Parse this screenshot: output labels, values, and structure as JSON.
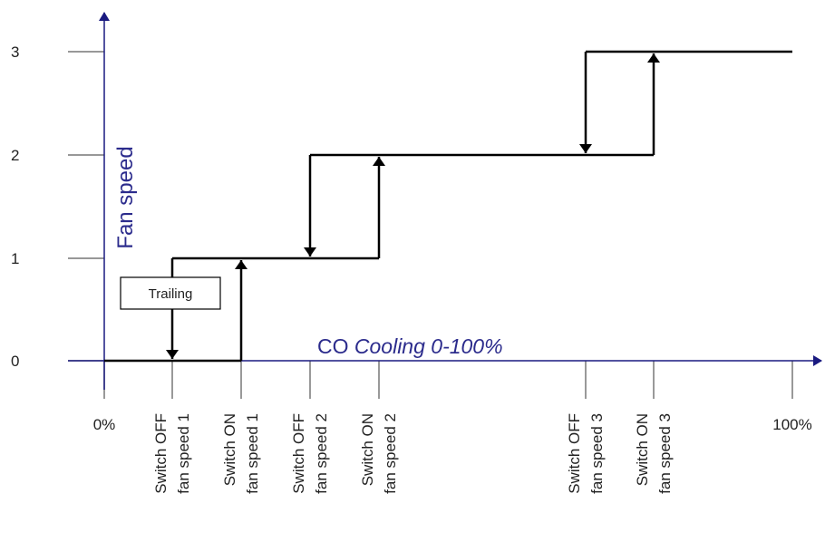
{
  "y_axis": {
    "title": "Fan speed",
    "labels": [
      "0",
      "1",
      "2",
      "3"
    ]
  },
  "x_axis": {
    "title_prefix": "CO",
    "title_italic": "Cooling 0-100%",
    "labels": [
      {
        "lines": [
          "0%"
        ]
      },
      {
        "lines": [
          "Switch OFF",
          "fan speed 1"
        ]
      },
      {
        "lines": [
          "Switch ON",
          "fan speed 1"
        ]
      },
      {
        "lines": [
          "Switch OFF",
          "fan speed 2"
        ]
      },
      {
        "lines": [
          "Switch ON",
          "fan speed 2"
        ]
      },
      {
        "lines": [
          "Switch OFF",
          "fan speed 3"
        ]
      },
      {
        "lines": [
          "Switch ON",
          "fan speed 3"
        ]
      },
      {
        "lines": [
          "100%"
        ]
      }
    ]
  },
  "note": "Trailing"
}
